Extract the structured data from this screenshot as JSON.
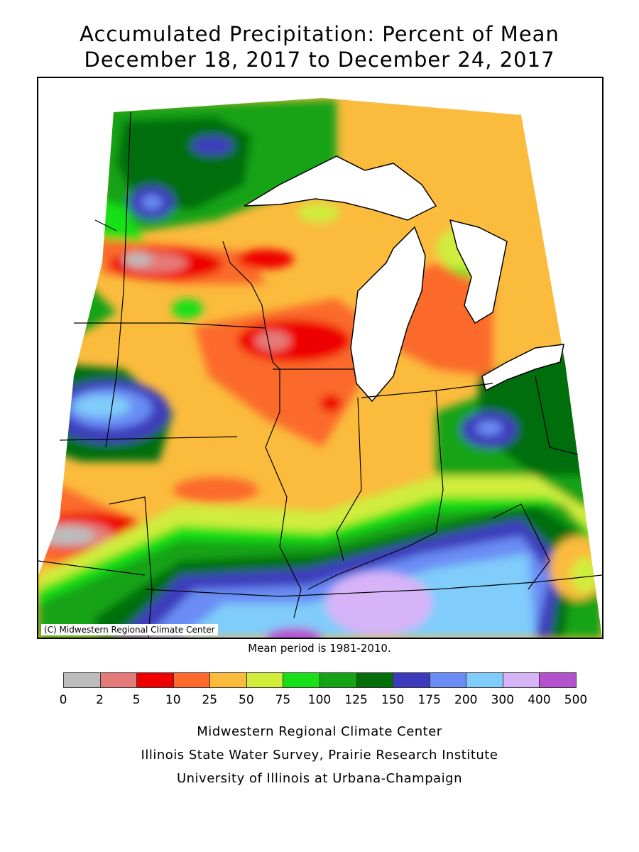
{
  "title_line1": "Accumulated Precipitation: Percent of Mean",
  "title_line2": "December 18, 2017 to December 24, 2017",
  "copyright": "(C) Midwestern Regional Climate Center",
  "mean_note": "Mean period is 1981-2010.",
  "legend": {
    "bins": [
      {
        "range": "0-2",
        "color": "#bcbcbc"
      },
      {
        "range": "2-5",
        "color": "#e57b78"
      },
      {
        "range": "5-10",
        "color": "#ee0000"
      },
      {
        "range": "10-25",
        "color": "#fb6a2c"
      },
      {
        "range": "25-50",
        "color": "#fbbb3d"
      },
      {
        "range": "50-75",
        "color": "#d0ed3c"
      },
      {
        "range": "75-100",
        "color": "#18e018"
      },
      {
        "range": "100-125",
        "color": "#13a315"
      },
      {
        "range": "125-150",
        "color": "#046e08"
      },
      {
        "range": "150-175",
        "color": "#3c3cbc"
      },
      {
        "range": "175-200",
        "color": "#6a8df5"
      },
      {
        "range": "200-300",
        "color": "#80ccfa"
      },
      {
        "range": "300-400",
        "color": "#d7b3f8"
      },
      {
        "range": "400-500",
        "color": "#b451ce"
      }
    ],
    "ticks": [
      "0",
      "2",
      "5",
      "10",
      "25",
      "50",
      "75",
      "100",
      "125",
      "150",
      "175",
      "200",
      "300",
      "400",
      "500"
    ]
  },
  "footer": {
    "line1": "Midwestern Regional Climate Center",
    "line2": "Illinois State Water Survey, Prairie Research Institute",
    "line3": "University of Illinois at Urbana-Champaign"
  }
}
